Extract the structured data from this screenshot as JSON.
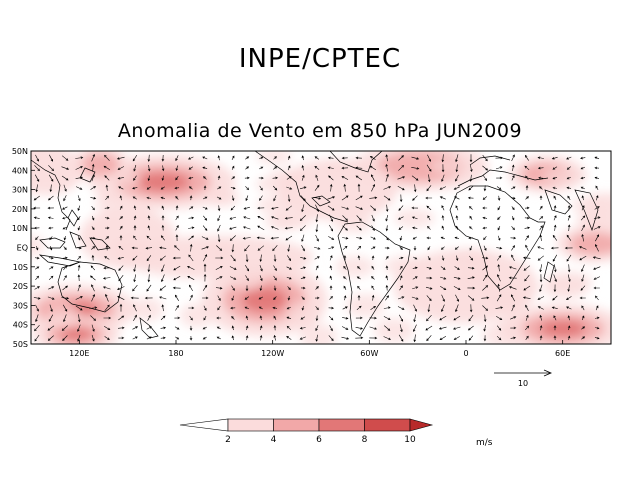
{
  "header": {
    "title": "INPE/CPTEC"
  },
  "chart_data": {
    "type": "vector-map",
    "title": "Anomalia de Vento em 850 hPa JUN2009",
    "lat_ticks": [
      "50N",
      "40N",
      "30N",
      "20N",
      "10N",
      "EQ",
      "10S",
      "20S",
      "30S",
      "40S",
      "50S"
    ],
    "lon_ticks": [
      {
        "label": "120E",
        "lon": 120
      },
      {
        "label": "180",
        "lon": 180
      },
      {
        "label": "120W",
        "lon": 240
      },
      {
        "label": "60W",
        "lon": 300
      },
      {
        "label": "0",
        "lon": 360
      },
      {
        "label": "60E",
        "lon": 420
      }
    ],
    "lon_range": [
      90,
      450
    ],
    "lat_range": [
      -50,
      50
    ],
    "reference_vector": {
      "label": "10",
      "value": 10
    },
    "colorbar": {
      "levels": [
        "2",
        "4",
        "6",
        "8",
        "10"
      ],
      "unit": "m/s",
      "colors": [
        "#ffffff",
        "#fbdcdc",
        "#f2a8a8",
        "#e27777",
        "#d04c4c",
        "#b82a2a"
      ]
    },
    "shading_blobs": [
      {
        "lon": 172,
        "lat": 34,
        "rx": 30,
        "ry": 9,
        "level": 3
      },
      {
        "lon": 133,
        "lat": 43,
        "rx": 12,
        "ry": 6,
        "level": 2
      },
      {
        "lon": 118,
        "lat": -32,
        "rx": 25,
        "ry": 8,
        "level": 3
      },
      {
        "lon": 118,
        "lat": -45,
        "rx": 18,
        "ry": 6,
        "level": 3
      },
      {
        "lon": 235,
        "lat": -27,
        "rx": 26,
        "ry": 12,
        "level": 3
      },
      {
        "lon": 205,
        "lat": -5,
        "rx": 40,
        "ry": 7,
        "level": 1
      },
      {
        "lon": 332,
        "lat": 42,
        "rx": 28,
        "ry": 8,
        "level": 2
      },
      {
        "lon": 410,
        "lat": 38,
        "rx": 16,
        "ry": 6,
        "level": 2
      },
      {
        "lon": 440,
        "lat": 2,
        "rx": 16,
        "ry": 6,
        "level": 2
      },
      {
        "lon": 420,
        "lat": -42,
        "rx": 26,
        "ry": 8,
        "level": 3
      },
      {
        "lon": 100,
        "lat": 40,
        "rx": 15,
        "ry": 8,
        "level": 1
      },
      {
        "lon": 280,
        "lat": 30,
        "rx": 25,
        "ry": 10,
        "level": 1
      },
      {
        "lon": 150,
        "lat": 5,
        "rx": 20,
        "ry": 10,
        "level": 1
      },
      {
        "lon": 360,
        "lat": -20,
        "rx": 30,
        "ry": 12,
        "level": 1
      }
    ]
  }
}
